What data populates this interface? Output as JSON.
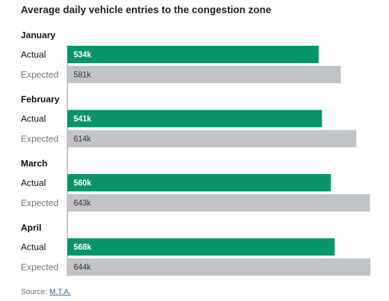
{
  "chart_data": {
    "type": "bar",
    "orientation": "horizontal",
    "title": "Average daily vehicle entries to the congestion zone",
    "categories": [
      "January",
      "February",
      "March",
      "April"
    ],
    "series": [
      {
        "name": "Actual",
        "values": [
          534,
          541,
          560,
          568
        ],
        "labels": [
          "534k",
          "541k",
          "560k",
          "568k"
        ]
      },
      {
        "name": "Expected",
        "values": [
          581,
          614,
          643,
          644
        ],
        "labels": [
          "581k",
          "614k",
          "643k",
          "644k"
        ]
      }
    ],
    "unit": "k",
    "grid": false,
    "legend": "none"
  },
  "colors": {
    "actual": "#0a9469",
    "expected": "#c1c4c7"
  },
  "source": {
    "label": "Source:",
    "link": "M.T.A."
  }
}
